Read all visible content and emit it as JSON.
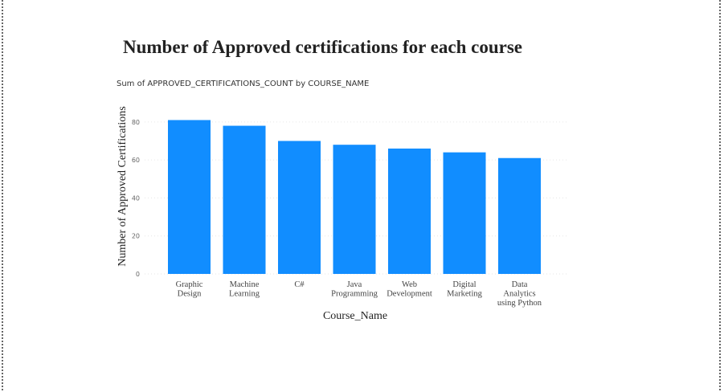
{
  "chart_data": {
    "type": "bar",
    "title": "Number of Approved certifications for each course",
    "subtitle": "Sum of APPROVED_CERTIFICATIONS_COUNT by COURSE_NAME",
    "xlabel": "Course_Name",
    "ylabel": "Number of Approved Certifications",
    "categories": [
      [
        "Graphic",
        "Design"
      ],
      [
        "Machine",
        "Learning"
      ],
      [
        "C#"
      ],
      [
        "Java",
        "Programming"
      ],
      [
        "Web",
        "Development"
      ],
      [
        "Digital",
        "Marketing"
      ],
      [
        "Data",
        "Analytics",
        "using Python"
      ]
    ],
    "values": [
      81,
      78,
      70,
      68,
      66,
      64,
      61
    ],
    "ylim": [
      0,
      85
    ],
    "yticks": [
      0,
      20,
      40,
      60,
      80
    ],
    "grid": true,
    "bar_color": "#118dff"
  }
}
